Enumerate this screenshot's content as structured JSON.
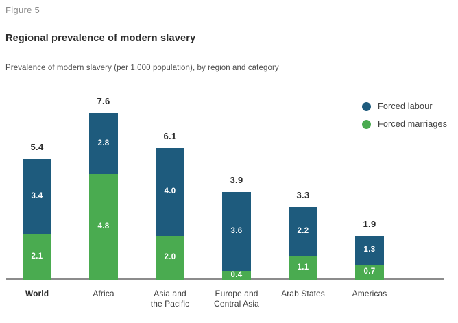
{
  "figure_label": "Figure 5",
  "title": "Regional prevalence of modern slavery",
  "subtitle": "Prevalence of modern slavery (per 1,000 population), by region and category",
  "legend": [
    {
      "label": "Forced labour",
      "color": "#1e5b7d"
    },
    {
      "label": "Forced marriages",
      "color": "#4aab50"
    }
  ],
  "chart_data": {
    "type": "bar",
    "stacked": true,
    "title": "Regional prevalence of modern slavery",
    "xlabel": "",
    "ylabel": "",
    "legend_position": "top-right",
    "grid": false,
    "categories": [
      "World",
      "Africa",
      "Asia and the Pacific",
      "Europe and Central Asia",
      "Arab States",
      "Americas"
    ],
    "category_lines": [
      [
        "World"
      ],
      [
        "Africa"
      ],
      [
        "Asia and",
        "the Pacific"
      ],
      [
        "Europe and",
        "Central Asia"
      ],
      [
        "Arab States"
      ],
      [
        "Americas"
      ]
    ],
    "bold_categories": [
      "World"
    ],
    "series": [
      {
        "name": "Forced labour",
        "color": "#1e5b7d",
        "values": [
          3.4,
          2.8,
          4.0,
          3.6,
          2.2,
          1.3
        ]
      },
      {
        "name": "Forced marriages",
        "color": "#4aab50",
        "values": [
          2.1,
          4.8,
          2.0,
          0.4,
          1.1,
          0.7
        ]
      }
    ],
    "totals": [
      5.4,
      7.6,
      6.1,
      3.9,
      3.3,
      1.9
    ],
    "value_label_color": "#ffffff",
    "total_label_color": "#2b2b2b"
  }
}
